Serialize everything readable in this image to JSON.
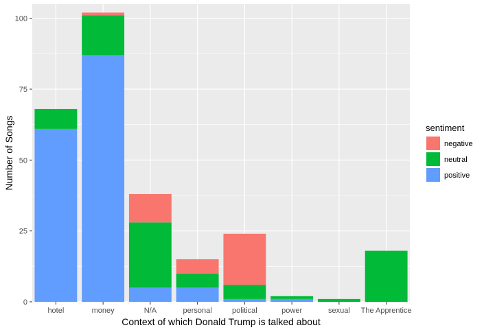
{
  "chart_data": {
    "type": "bar",
    "stacked": true,
    "title": "",
    "xlabel": "Context of which Donald Trump is talked about",
    "ylabel": "Number of Songs",
    "categories": [
      "hotel",
      "money",
      "N/A",
      "personal",
      "political",
      "power",
      "sexual",
      "The Apprentice"
    ],
    "series": [
      {
        "name": "positive",
        "color": "#619CFF",
        "values": [
          61,
          87,
          5,
          5,
          1,
          1,
          0,
          0
        ]
      },
      {
        "name": "neutral",
        "color": "#00BA38",
        "values": [
          7,
          14,
          23,
          5,
          5,
          1,
          1,
          18
        ]
      },
      {
        "name": "negative",
        "color": "#F8766D",
        "values": [
          0,
          1,
          10,
          5,
          18,
          0,
          0,
          0
        ]
      }
    ],
    "ylim": [
      0,
      105
    ],
    "yticks": [
      0,
      25,
      50,
      75,
      100
    ],
    "grid": true,
    "legend": {
      "title": "sentiment",
      "position": "right",
      "items": [
        {
          "label": "negative",
          "color": "#F8766D"
        },
        {
          "label": "neutral",
          "color": "#00BA38"
        },
        {
          "label": "positive",
          "color": "#619CFF"
        }
      ]
    },
    "panel_background": "#EBEBEB",
    "gridline_color": "#FFFFFF"
  }
}
